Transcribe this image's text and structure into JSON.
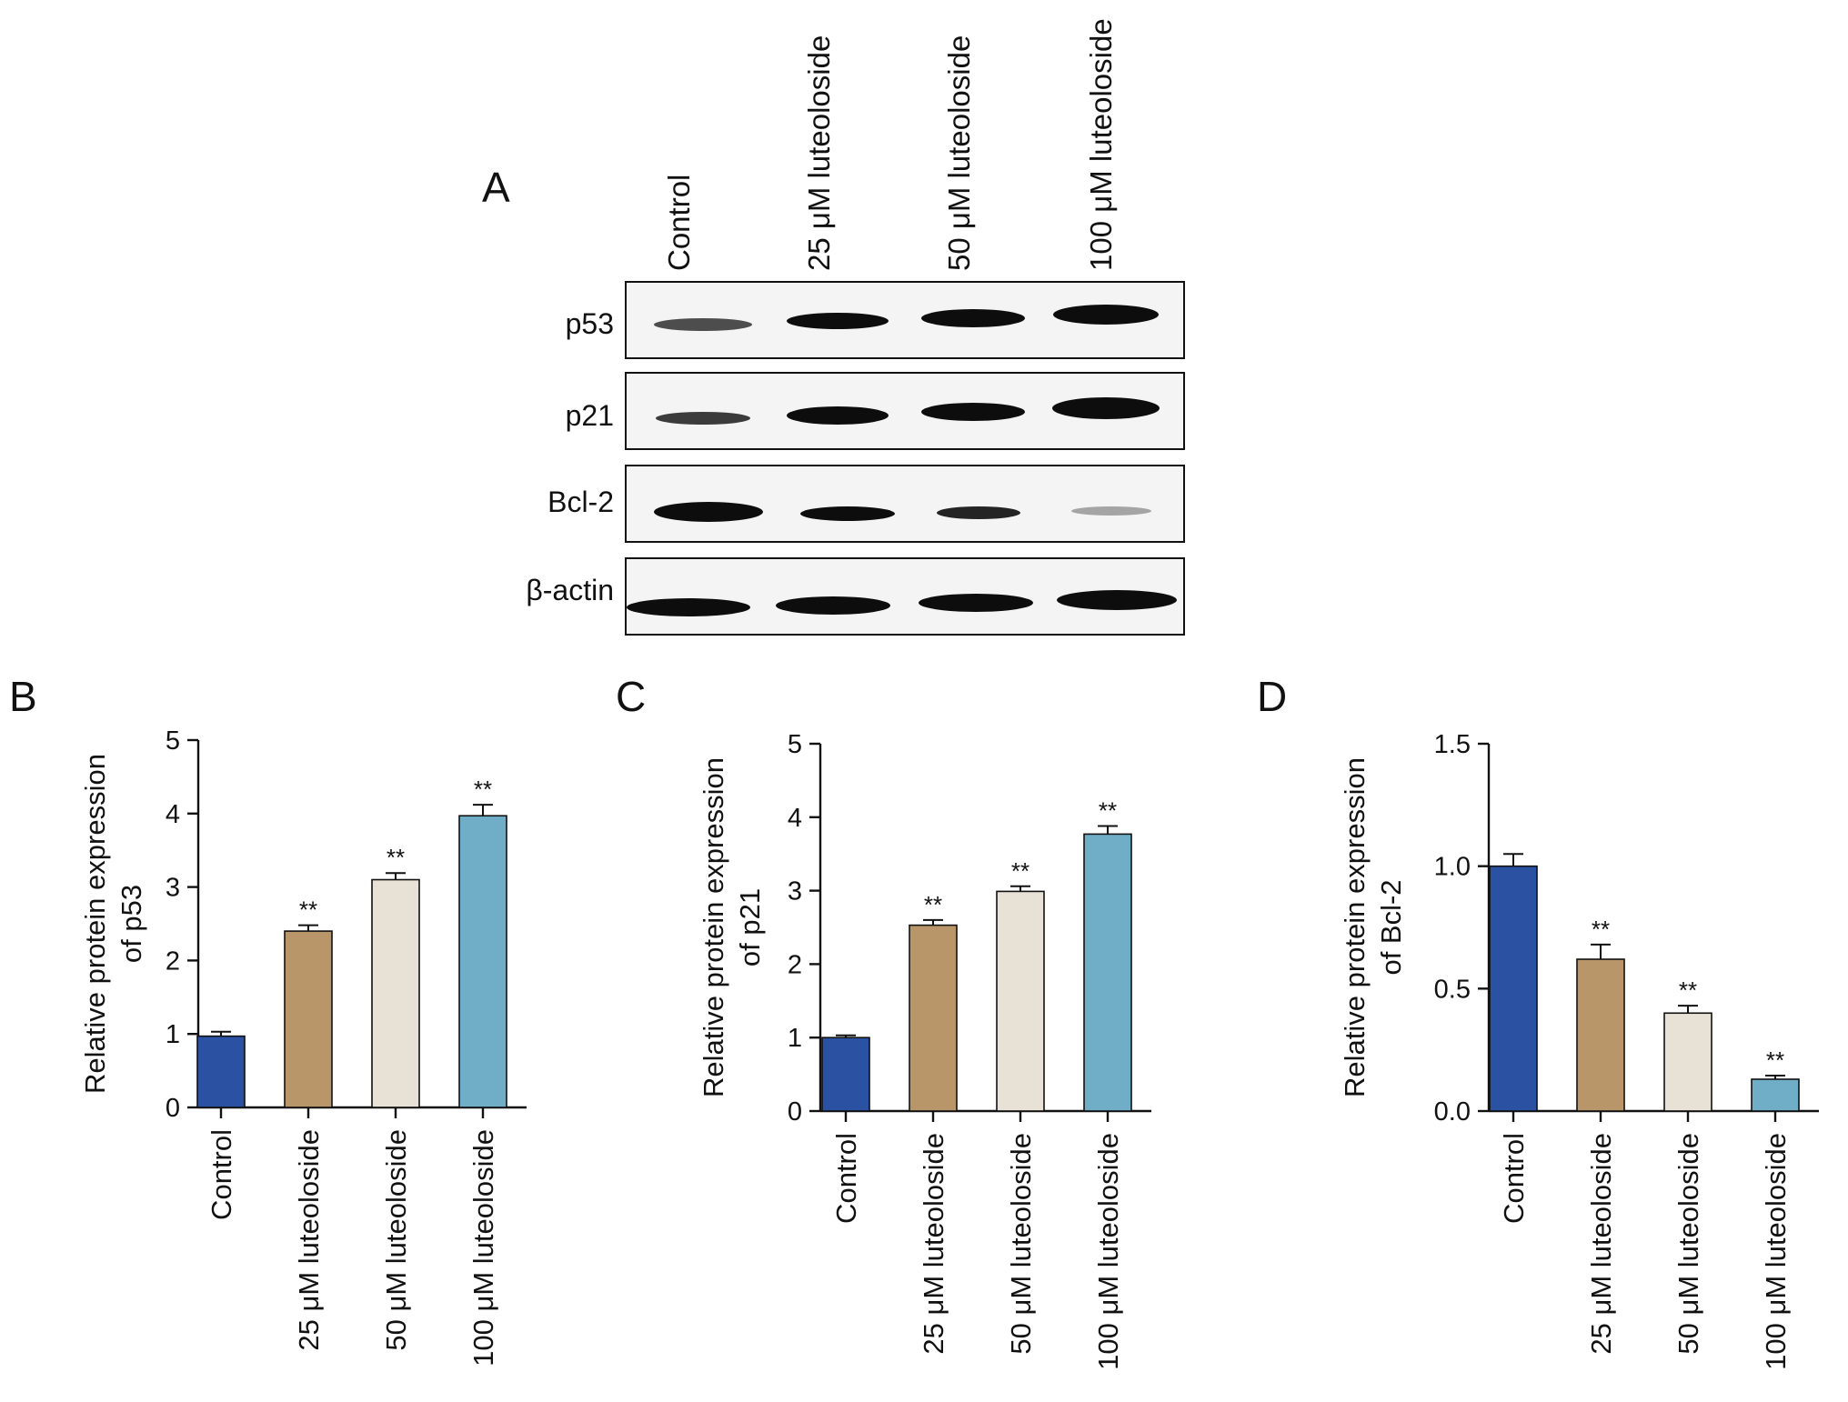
{
  "panels": {
    "a": "A",
    "b": "B",
    "c": "C",
    "d": "D"
  },
  "blot": {
    "lanes": [
      "Control",
      "25 μM luteoloside",
      "50 μM luteoloside",
      "100 μM luteoloside"
    ],
    "proteins": [
      "p53",
      "p21",
      "Bcl-2",
      "β-actin"
    ]
  },
  "colors": {
    "control": "#2b52a2",
    "dose25": "#b8966a",
    "dose50": "#e8e1d6",
    "dose100": "#6faec6",
    "band": "#0d0d0d"
  },
  "chart_data": [
    {
      "type": "bar",
      "panel": "B",
      "categories": [
        "Control",
        "25 μM luteoloside",
        "50 μM luteoloside",
        "100 μM luteoloside"
      ],
      "values": [
        0.97,
        2.4,
        3.1,
        3.97
      ],
      "errors": [
        0.06,
        0.08,
        0.09,
        0.15
      ],
      "significance": [
        "",
        "**",
        "**",
        "**"
      ],
      "ylabel_lines": [
        "Relative protein expression",
        "of p53"
      ],
      "ylim": [
        0,
        5
      ],
      "yticks": [
        "0",
        "1",
        "2",
        "3",
        "4",
        "5"
      ],
      "grid": false
    },
    {
      "type": "bar",
      "panel": "C",
      "categories": [
        "Control",
        "25 μM luteoloside",
        "50 μM luteoloside",
        "100 μM luteoloside"
      ],
      "values": [
        1.0,
        2.53,
        2.99,
        3.77
      ],
      "errors": [
        0.03,
        0.07,
        0.07,
        0.11
      ],
      "significance": [
        "",
        "**",
        "**",
        "**"
      ],
      "ylabel_lines": [
        "Relative protein expression",
        "of p21"
      ],
      "ylim": [
        0,
        5
      ],
      "yticks": [
        "0",
        "1",
        "2",
        "3",
        "4",
        "5"
      ],
      "grid": false
    },
    {
      "type": "bar",
      "panel": "D",
      "categories": [
        "Control",
        "25 μM luteoloside",
        "50 μM luteoloside",
        "100 μM luteoloside"
      ],
      "values": [
        1.0,
        0.62,
        0.4,
        0.13
      ],
      "errors": [
        0.05,
        0.06,
        0.03,
        0.015
      ],
      "significance": [
        "",
        "**",
        "**",
        "**"
      ],
      "ylabel_lines": [
        "Relative protein expression",
        "of Bcl-2"
      ],
      "ylim": [
        0,
        1.5
      ],
      "yticks": [
        "0.0",
        "0.5",
        "1.0",
        "1.5"
      ],
      "grid": false
    }
  ]
}
